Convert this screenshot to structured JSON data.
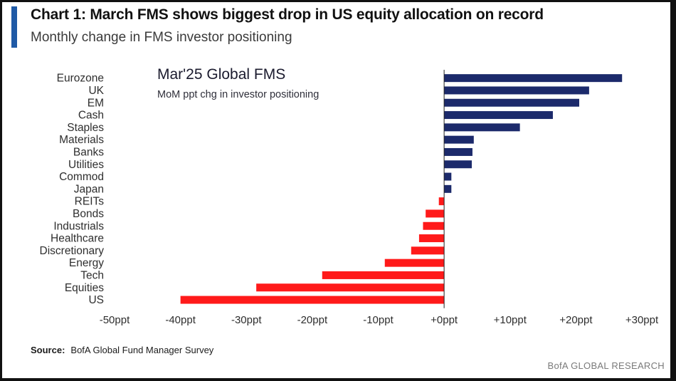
{
  "header": {
    "title": "Chart 1: March FMS shows biggest drop in US equity allocation on record",
    "subtitle": "Monthly change in FMS investor positioning"
  },
  "inset": {
    "title": "Mar'25 Global FMS",
    "subtitle": "MoM ppt chg in investor positioning"
  },
  "footer": {
    "source_label": "Source:",
    "source_text": "BofA Global Fund Manager Survey",
    "brand": "BofA GLOBAL RESEARCH"
  },
  "colors": {
    "positive": "#1c2a6b",
    "negative": "#ff1a1a",
    "accent": "#1f5aa6"
  },
  "chart_data": {
    "type": "bar",
    "orientation": "horizontal",
    "title": "Mar'25 Global FMS",
    "subtitle": "MoM ppt chg in investor positioning",
    "categories": [
      "Eurozone",
      "UK",
      "EM",
      "Cash",
      "Staples",
      "Materials",
      "Banks",
      "Utilities",
      "Commod",
      "Japan",
      "REITs",
      "Bonds",
      "Industrials",
      "Healthcare",
      "Discretionary",
      "Energy",
      "Tech",
      "Equities",
      "US"
    ],
    "values": [
      27,
      22,
      20.5,
      16.5,
      11.5,
      4.5,
      4.3,
      4.2,
      1.1,
      1.1,
      -0.8,
      -2.8,
      -3.2,
      -3.8,
      -5.0,
      -9.0,
      -18.5,
      -28.5,
      -40
    ],
    "xlim": [
      -50,
      30
    ],
    "xticks": [
      -50,
      -40,
      -30,
      -20,
      -10,
      0,
      10,
      20,
      30
    ],
    "xtick_labels": [
      "-50ppt",
      "-40ppt",
      "-30ppt",
      "-20ppt",
      "-10ppt",
      "+0ppt",
      "+10ppt",
      "+20ppt",
      "+30ppt"
    ],
    "grid": false,
    "legend": "none"
  }
}
